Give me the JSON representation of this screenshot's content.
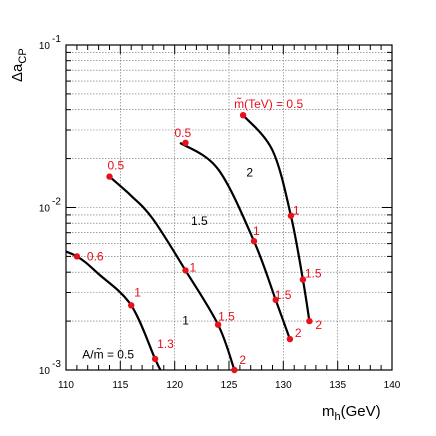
{
  "chart_data": {
    "type": "line",
    "title": "",
    "xlabel": {
      "main": "m",
      "sub": "h",
      "unit": "(GeV)"
    },
    "ylabel": {
      "main": "Δa",
      "sub": "CP"
    },
    "xlim": [
      110,
      140
    ],
    "ylim": [
      0.001,
      0.1
    ],
    "yscale": "log",
    "grid": true,
    "x_ticks": [
      "110",
      "115",
      "120",
      "125",
      "130",
      "135",
      "140"
    ],
    "y_ticks": [
      {
        "value": 0.001,
        "base": "10",
        "exp": "-3"
      },
      {
        "value": 0.01,
        "base": "10",
        "exp": "-2"
      },
      {
        "value": 0.1,
        "base": "10",
        "exp": "-1"
      }
    ],
    "curves": [
      {
        "name": "A/m̃ = 0.5",
        "line": [
          [
            108.5,
            0.0058
          ],
          [
            111,
            0.005
          ],
          [
            113,
            0.0039
          ],
          [
            116,
            0.0025
          ],
          [
            118.2,
            0.00117
          ],
          [
            118.7,
            0.001
          ]
        ]
      },
      {
        "name": "A/m̃ = 1",
        "line": [
          [
            114,
            0.0155
          ],
          [
            116,
            0.0118
          ],
          [
            118,
            0.0085
          ],
          [
            121,
            0.0041
          ],
          [
            124,
            0.0019
          ],
          [
            125.5,
            0.001
          ]
        ]
      },
      {
        "name": "A/m̃ = 1.5",
        "line": [
          [
            120.5,
            0.025
          ],
          [
            124,
            0.0172
          ],
          [
            127.3,
            0.0062
          ],
          [
            129.3,
            0.0027
          ],
          [
            130.6,
            0.00155
          ]
        ]
      },
      {
        "name": "A/m̃ = 2",
        "line": [
          [
            126.3,
            0.037
          ],
          [
            129,
            0.0225
          ],
          [
            130.7,
            0.0089
          ],
          [
            131.8,
            0.0036
          ],
          [
            132.4,
            0.002
          ]
        ]
      }
    ],
    "points": [
      {
        "x": 111,
        "y": 0.005,
        "label": "0.6"
      },
      {
        "x": 116,
        "y": 0.0025,
        "label": "1"
      },
      {
        "x": 118.2,
        "y": 0.00117,
        "label": "1.3"
      },
      {
        "x": 114,
        "y": 0.0155,
        "label": "0.5"
      },
      {
        "x": 121,
        "y": 0.0041,
        "label": "1"
      },
      {
        "x": 124,
        "y": 0.0019,
        "label": "1.5"
      },
      {
        "x": 125.5,
        "y": 0.001,
        "label": "2"
      },
      {
        "x": 121,
        "y": 0.025,
        "label": "0.5"
      },
      {
        "x": 127.3,
        "y": 0.0062,
        "label": "1"
      },
      {
        "x": 129.3,
        "y": 0.0027,
        "label": "1.5"
      },
      {
        "x": 130.6,
        "y": 0.00155,
        "label": "2"
      },
      {
        "x": 126.3,
        "y": 0.037,
        "label": "m̃(TeV) = 0.5"
      },
      {
        "x": 130.7,
        "y": 0.0089,
        "label": "1"
      },
      {
        "x": 131.8,
        "y": 0.0036,
        "label": "1.5"
      },
      {
        "x": 132.4,
        "y": 0.002,
        "label": "2"
      }
    ],
    "annotations": [
      {
        "text": "A/m̃ = 0.5",
        "x": 111.5,
        "y": 0.00118
      },
      {
        "text": "1",
        "x": 120.7,
        "y": 0.0019
      },
      {
        "text": "1.5",
        "x": 121.5,
        "y": 0.0078
      },
      {
        "text": "2",
        "x": 126.6,
        "y": 0.0155
      }
    ],
    "colors": {
      "curve": "#000000",
      "point": "#e8101a",
      "grid": "#6a6a6a"
    }
  }
}
